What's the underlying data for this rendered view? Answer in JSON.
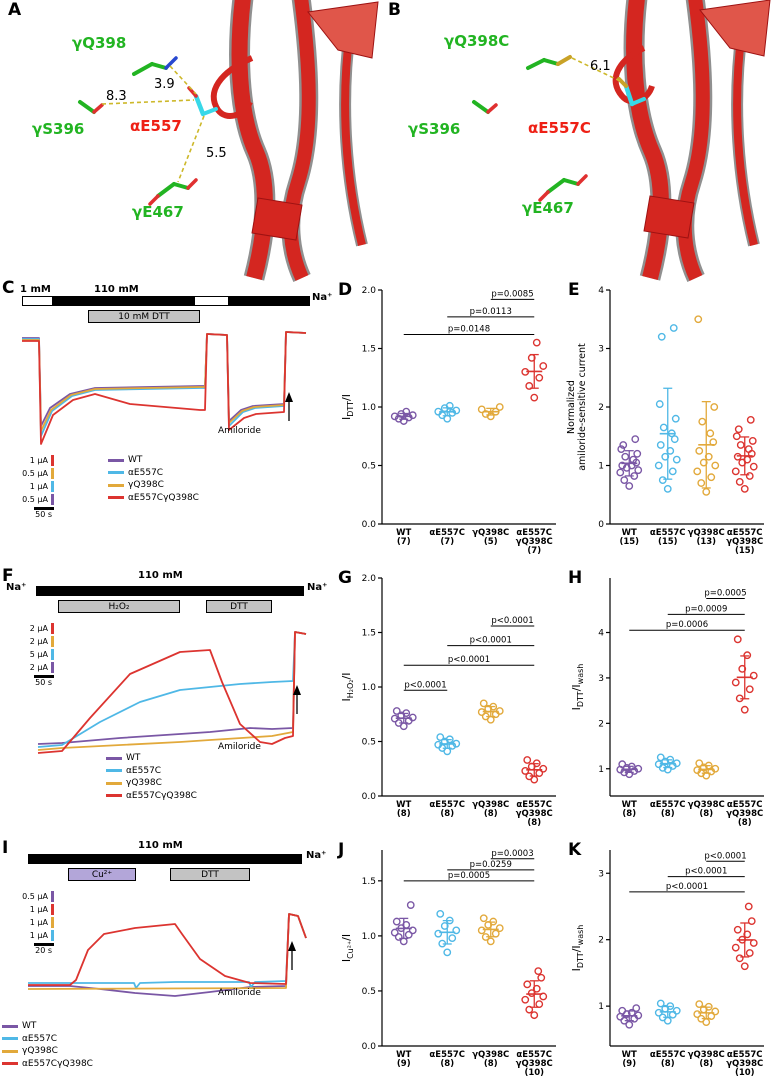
{
  "colors": {
    "WT": "#7A57A5",
    "aE557C": "#4FB8E6",
    "gQ398C": "#E2A93B",
    "double": "#DC3430",
    "green": "#22B422",
    "red": "#EE2015",
    "dash": "#CDB82A",
    "ribbon": "#D42620",
    "ribbon_dark": "#9E1212",
    "cyan_stick": "#38D8E8",
    "sulfur": "#C9A227",
    "nitrogen": "#2848D0",
    "oxygen": "#E03030",
    "gray_bar": "#C3C3C3",
    "cu_bar": "#B3A6D9"
  },
  "genotypes": [
    "WT",
    "αE557C",
    "γQ398C",
    "αE557CγQ398C"
  ],
  "panelA": {
    "label": "A",
    "res_q398": "γQ398",
    "res_s396": "γS396",
    "res_e557": "αE557",
    "res_e467": "γE467",
    "d1": "8.3",
    "d2": "3.9",
    "d3": "5.5"
  },
  "panelB": {
    "label": "B",
    "res_q398c": "γQ398C",
    "res_s396": "γS396",
    "res_e557c": "αE557C",
    "res_e467": "γE467",
    "d1": "6.1"
  },
  "panelC": {
    "label": "C",
    "conc_low": "1 mM",
    "conc_high": "110 mM",
    "ion": "Na⁺",
    "treatment": "10 mM DTT",
    "scalebars": [
      "1 µA",
      "0.5 µA",
      "1 µA",
      "0.5 µA"
    ],
    "timebar": "50 s",
    "amiloride": "Amiloride"
  },
  "panelF": {
    "label": "F",
    "conc": "110 mM",
    "ion_left": "Na⁺",
    "ion_right": "Na⁺",
    "treatment1": "H₂O₂",
    "treatment2": "DTT",
    "scalebars": [
      "2 µA",
      "2 µA",
      "5 µA",
      "2 µA"
    ],
    "timebar": "50 s",
    "amiloride": "Amiloride"
  },
  "panelI": {
    "label": "I",
    "conc": "110 mM",
    "ion": "Na⁺",
    "treatment1": "Cu²⁺",
    "treatment2": "DTT",
    "scalebars": [
      "0.5 µA",
      "1 µA",
      "1 µA",
      "1 µA"
    ],
    "timebar": "20 s",
    "amiloride": "Amiloride"
  },
  "chart_data": [
    {
      "id": "chartD",
      "panel_label": "D",
      "type": "scatter",
      "ml": 46,
      "ylabel_segments": [
        {
          "t": "I"
        },
        {
          "t": "DTT",
          "sub": true
        },
        {
          "t": "/I"
        }
      ],
      "ylim": [
        0,
        2.0
      ],
      "yticks": [
        0,
        0.5,
        1.0,
        1.5,
        2.0
      ],
      "ytick_labels": [
        "0.0",
        "0.5",
        "1.0",
        "1.5",
        "2.0"
      ],
      "groups": [
        {
          "label_lines": [
            "WT",
            "(7)"
          ],
          "color": "WT",
          "values": [
            0.88,
            0.9,
            0.91,
            0.92,
            0.93,
            0.94,
            0.96
          ]
        },
        {
          "label_lines": [
            "αE557C",
            "(7)"
          ],
          "color": "aE557C",
          "values": [
            0.9,
            0.93,
            0.95,
            0.96,
            0.97,
            0.99,
            1.01
          ]
        },
        {
          "label_lines": [
            "γQ398C",
            "(5)"
          ],
          "color": "gQ398C",
          "values": [
            0.92,
            0.94,
            0.96,
            0.98,
            1.0
          ]
        },
        {
          "label_lines": [
            "αE557C",
            "γQ398C",
            "(7)"
          ],
          "color": "double",
          "values": [
            1.08,
            1.18,
            1.25,
            1.3,
            1.35,
            1.42,
            1.55
          ]
        }
      ],
      "brackets": [
        {
          "from": 0,
          "to": 3,
          "y": 1.62,
          "label": "p=0.0148"
        },
        {
          "from": 1,
          "to": 3,
          "y": 1.77,
          "label": "p=0.0113"
        },
        {
          "from": 2,
          "to": 3,
          "y": 1.92,
          "label": "p=0.0085"
        }
      ]
    },
    {
      "id": "chartE",
      "panel_label": "E",
      "type": "scatter",
      "ml": 44,
      "ylabel_lines": [
        "Normalized",
        "amiloride-sensitive current"
      ],
      "ylim": [
        0,
        4
      ],
      "yticks": [
        0,
        1,
        2,
        3,
        4
      ],
      "ytick_labels": [
        "0",
        "1",
        "2",
        "3",
        "4"
      ],
      "groups": [
        {
          "label_lines": [
            "WT",
            "(15)"
          ],
          "color": "WT",
          "values": [
            0.65,
            0.75,
            0.82,
            0.88,
            0.92,
            0.96,
            1.0,
            1.0,
            1.05,
            1.1,
            1.15,
            1.2,
            1.28,
            1.35,
            1.45
          ]
        },
        {
          "label_lines": [
            "αE557C",
            "(15)"
          ],
          "color": "aE557C",
          "values": [
            0.6,
            0.75,
            0.9,
            1.0,
            1.1,
            1.15,
            1.25,
            1.35,
            1.45,
            1.55,
            1.65,
            1.8,
            2.05,
            3.2,
            3.35
          ]
        },
        {
          "label_lines": [
            "γQ398C",
            "(13)"
          ],
          "color": "gQ398C",
          "values": [
            0.55,
            0.7,
            0.8,
            0.9,
            1.0,
            1.05,
            1.15,
            1.25,
            1.4,
            1.55,
            1.75,
            2.0,
            3.5
          ]
        },
        {
          "label_lines": [
            "αE557C",
            "γQ398C",
            "(15)"
          ],
          "color": "double",
          "values": [
            0.6,
            0.72,
            0.82,
            0.9,
            0.98,
            1.05,
            1.1,
            1.15,
            1.2,
            1.28,
            1.35,
            1.42,
            1.5,
            1.62,
            1.78
          ]
        }
      ],
      "brackets": []
    },
    {
      "id": "chartG",
      "panel_label": "G",
      "type": "scatter",
      "ml": 46,
      "ylabel_segments": [
        {
          "t": "I"
        },
        {
          "t": "H₂O₂",
          "sub": true
        },
        {
          "t": "/I"
        }
      ],
      "ylim": [
        0,
        2.0
      ],
      "yticks": [
        0,
        0.5,
        1.0,
        1.5,
        2.0
      ],
      "ytick_labels": [
        "0.0",
        "0.5",
        "1.0",
        "1.5",
        "2.0"
      ],
      "groups": [
        {
          "label_lines": [
            "WT",
            "(8)"
          ],
          "color": "WT",
          "values": [
            0.64,
            0.67,
            0.69,
            0.71,
            0.72,
            0.74,
            0.76,
            0.78
          ]
        },
        {
          "label_lines": [
            "αE557C",
            "(8)"
          ],
          "color": "aE557C",
          "values": [
            0.41,
            0.44,
            0.46,
            0.47,
            0.48,
            0.5,
            0.52,
            0.54
          ]
        },
        {
          "label_lines": [
            "γQ398C",
            "(8)"
          ],
          "color": "gQ398C",
          "values": [
            0.7,
            0.73,
            0.75,
            0.77,
            0.78,
            0.8,
            0.82,
            0.85
          ]
        },
        {
          "label_lines": [
            "αE557C",
            "γQ398C",
            "(8)"
          ],
          "color": "double",
          "values": [
            0.15,
            0.18,
            0.21,
            0.23,
            0.25,
            0.27,
            0.3,
            0.33
          ]
        }
      ],
      "brackets": [
        {
          "from": 0,
          "to": 1,
          "y": 0.97,
          "label": "p<0.0001"
        },
        {
          "from": 0,
          "to": 3,
          "y": 1.2,
          "label": "p<0.0001"
        },
        {
          "from": 1,
          "to": 3,
          "y": 1.38,
          "label": "p<0.0001"
        },
        {
          "from": 2,
          "to": 3,
          "y": 1.56,
          "label": "p<0.0001"
        }
      ]
    },
    {
      "id": "chartH",
      "panel_label": "H",
      "type": "scatter",
      "ml": 44,
      "ylabel_segments": [
        {
          "t": "I"
        },
        {
          "t": "DTT",
          "sub": true
        },
        {
          "t": "/I"
        },
        {
          "t": "wash",
          "sub": true
        }
      ],
      "ylim": [
        0.4,
        5.2
      ],
      "yticks": [
        1,
        2,
        3,
        4
      ],
      "ytick_labels": [
        "1",
        "2",
        "3",
        "4"
      ],
      "groups": [
        {
          "label_lines": [
            "WT",
            "(8)"
          ],
          "color": "WT",
          "values": [
            0.88,
            0.92,
            0.95,
            0.98,
            1.0,
            1.02,
            1.05,
            1.1
          ]
        },
        {
          "label_lines": [
            "αE557C",
            "(8)"
          ],
          "color": "aE557C",
          "values": [
            0.98,
            1.02,
            1.06,
            1.1,
            1.12,
            1.16,
            1.2,
            1.25
          ]
        },
        {
          "label_lines": [
            "γQ398C",
            "(8)"
          ],
          "color": "gQ398C",
          "values": [
            0.85,
            0.9,
            0.94,
            0.97,
            1.0,
            1.03,
            1.07,
            1.12
          ]
        },
        {
          "label_lines": [
            "αE557C",
            "γQ398C",
            "(8)"
          ],
          "color": "double",
          "values": [
            2.3,
            2.55,
            2.75,
            2.9,
            3.05,
            3.2,
            3.5,
            3.85
          ]
        }
      ],
      "brackets": [
        {
          "from": 0,
          "to": 3,
          "y": 4.05,
          "label": "p=0.0006"
        },
        {
          "from": 1,
          "to": 3,
          "y": 4.4,
          "label": "p=0.0009"
        },
        {
          "from": 2,
          "to": 3,
          "y": 4.75,
          "label": "p=0.0005"
        }
      ]
    },
    {
      "id": "chartJ",
      "panel_label": "J",
      "type": "scatter",
      "ml": 46,
      "ylabel_segments": [
        {
          "t": "I"
        },
        {
          "t": "Cu²⁺",
          "sub": true
        },
        {
          "t": "/I"
        }
      ],
      "ylim": [
        0,
        1.78
      ],
      "yticks": [
        0,
        0.5,
        1.0,
        1.5
      ],
      "ytick_labels": [
        "0.0",
        "0.5",
        "1.0",
        "1.5"
      ],
      "groups": [
        {
          "label_lines": [
            "WT",
            "(9)"
          ],
          "color": "WT",
          "values": [
            0.95,
            0.99,
            1.01,
            1.03,
            1.05,
            1.07,
            1.1,
            1.13,
            1.28
          ]
        },
        {
          "label_lines": [
            "αE557C",
            "(8)"
          ],
          "color": "aE557C",
          "values": [
            0.85,
            0.93,
            0.98,
            1.02,
            1.05,
            1.09,
            1.14,
            1.2
          ]
        },
        {
          "label_lines": [
            "γQ398C",
            "(8)"
          ],
          "color": "gQ398C",
          "values": [
            0.95,
            0.99,
            1.02,
            1.05,
            1.07,
            1.1,
            1.13,
            1.16
          ]
        },
        {
          "label_lines": [
            "αE557C",
            "γQ398C",
            "(10)"
          ],
          "color": "double",
          "values": [
            0.28,
            0.33,
            0.38,
            0.42,
            0.45,
            0.48,
            0.52,
            0.56,
            0.62,
            0.68
          ]
        }
      ],
      "brackets": [
        {
          "from": 0,
          "to": 3,
          "y": 1.5,
          "label": "p=0.0005"
        },
        {
          "from": 1,
          "to": 3,
          "y": 1.6,
          "label": "p=0.0259"
        },
        {
          "from": 2,
          "to": 3,
          "y": 1.7,
          "label": "p=0.0003"
        }
      ]
    },
    {
      "id": "chartK",
      "panel_label": "K",
      "type": "scatter",
      "ml": 44,
      "ylabel_segments": [
        {
          "t": "I"
        },
        {
          "t": "DTT",
          "sub": true
        },
        {
          "t": "/I"
        },
        {
          "t": "wash",
          "sub": true
        }
      ],
      "ylim": [
        0.4,
        3.35
      ],
      "yticks": [
        1,
        2,
        3
      ],
      "ytick_labels": [
        "1",
        "2",
        "3"
      ],
      "groups": [
        {
          "label_lines": [
            "WT",
            "(9)"
          ],
          "color": "WT",
          "values": [
            0.72,
            0.78,
            0.81,
            0.84,
            0.86,
            0.88,
            0.9,
            0.93,
            0.97
          ]
        },
        {
          "label_lines": [
            "αE557C",
            "(8)"
          ],
          "color": "aE557C",
          "values": [
            0.78,
            0.83,
            0.87,
            0.9,
            0.93,
            0.96,
            1.0,
            1.04
          ]
        },
        {
          "label_lines": [
            "γQ398C",
            "(8)"
          ],
          "color": "gQ398C",
          "values": [
            0.76,
            0.81,
            0.85,
            0.88,
            0.92,
            0.95,
            0.99,
            1.03
          ]
        },
        {
          "label_lines": [
            "αE557C",
            "γQ398C",
            "(10)"
          ],
          "color": "double",
          "values": [
            1.6,
            1.72,
            1.8,
            1.88,
            1.95,
            2.0,
            2.08,
            2.15,
            2.28,
            2.5
          ]
        }
      ],
      "brackets": [
        {
          "from": 0,
          "to": 3,
          "y": 2.72,
          "label": "p<0.0001"
        },
        {
          "from": 1,
          "to": 3,
          "y": 2.95,
          "label": "p<0.0001"
        },
        {
          "from": 2,
          "to": 3,
          "y": 3.18,
          "label": "p<0.0001"
        }
      ]
    }
  ]
}
